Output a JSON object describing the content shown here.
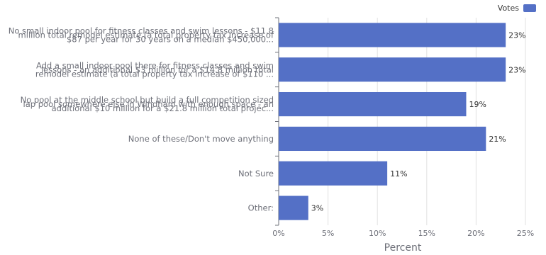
{
  "chart_data": {
    "type": "bar",
    "orientation": "horizontal",
    "categories": [
      [
        "No small indoor pool for fitness classes and swim lessons - $11.8",
        "million total remodel estimate (a total property tax increase of",
        "$87 per year for 30 years on a median $450,000..."
      ],
      [
        "Add a small indoor pool there for fitness classes and swim",
        "lessons - an additional $3 million for a $14.8 million total",
        "remodel estimate (a total property tax increase of $110 ..."
      ],
      [
        "No pool at the middle school but build a full competition sized",
        "lap pool somewhere else in Windham with enough space - an",
        "additional $10 million for a $21.8 million total projec..."
      ],
      [
        "None of these/Don't move anything"
      ],
      [
        "Not Sure"
      ],
      [
        "Other:"
      ]
    ],
    "series": [
      {
        "name": "Votes",
        "values": [
          23,
          23,
          19,
          21,
          11,
          3
        ],
        "color": "#5470c6"
      }
    ],
    "data_labels": [
      "23%",
      "23%",
      "19%",
      "21%",
      "11%",
      "3%"
    ],
    "xlabel": "Percent",
    "xlim": [
      0,
      25
    ],
    "xticks": [
      0,
      5,
      10,
      15,
      20,
      25
    ],
    "xtick_labels": [
      "0%",
      "5%",
      "10%",
      "15%",
      "20%",
      "25%"
    ],
    "grid": true,
    "legend_position": "top-right"
  },
  "legend": {
    "label": "Votes",
    "color": "#5470c6"
  }
}
